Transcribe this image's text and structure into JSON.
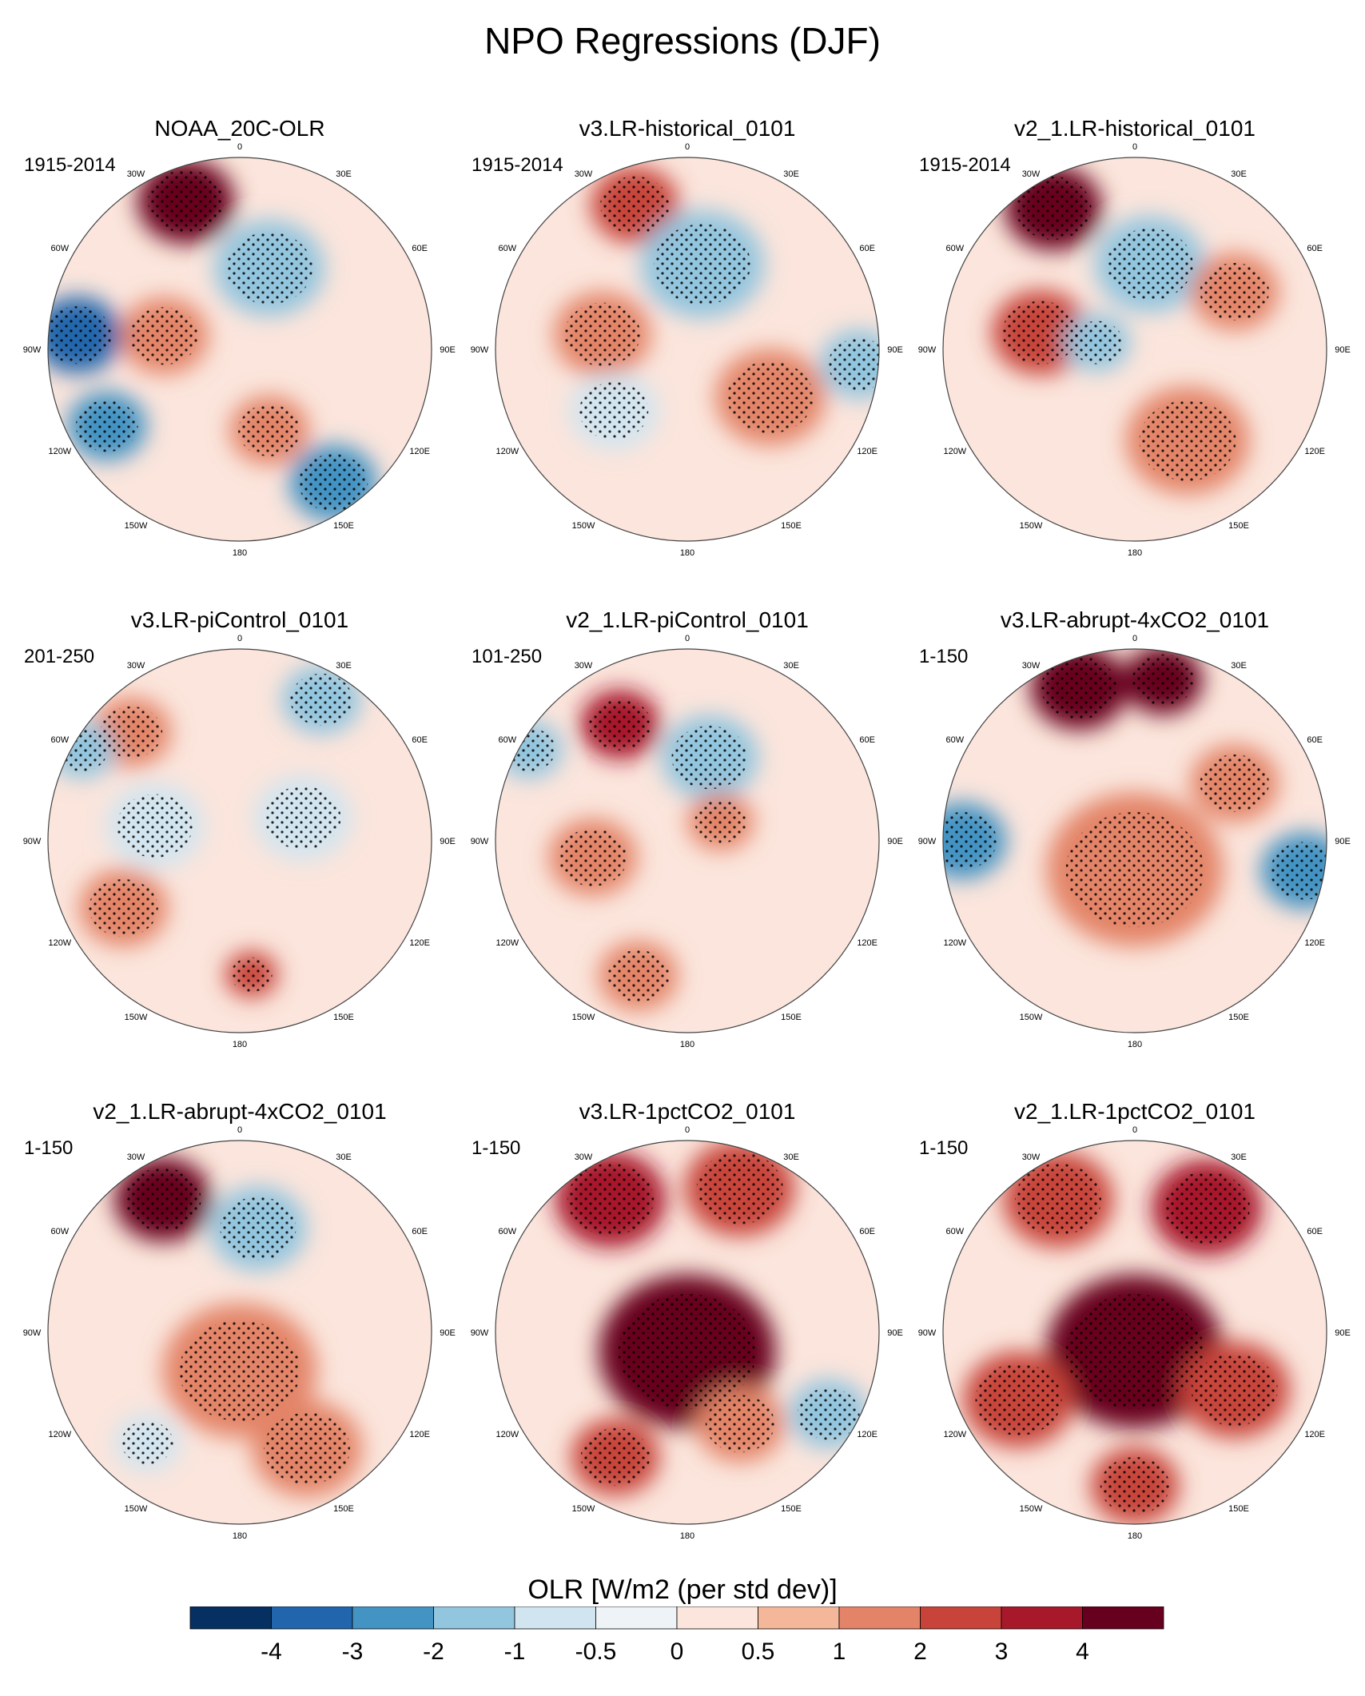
{
  "title": "NPO Regressions (DJF)",
  "chart_data": {
    "type": "heatmap",
    "projection": "north-polar-stereographic",
    "variable": "OLR",
    "longitude_labels": [
      "180",
      "150E",
      "120E",
      "90E",
      "60E",
      "30E",
      "0",
      "30W",
      "60W",
      "90W",
      "120W",
      "150W"
    ],
    "panels": [
      {
        "name": "NOAA_20C-OLR",
        "period": "1915-2014",
        "anomalies": [
          {
            "lon": -160,
            "colat": 0.82,
            "value": 4,
            "r": 0.22
          },
          {
            "lon": -95,
            "colat": 0.85,
            "value": -4,
            "r": 0.2
          },
          {
            "lon": -60,
            "colat": 0.8,
            "value": -3,
            "r": 0.18
          },
          {
            "lon": 160,
            "colat": 0.45,
            "value": -2,
            "r": 0.25
          },
          {
            "lon": -100,
            "colat": 0.4,
            "value": 1.5,
            "r": 0.2
          },
          {
            "lon": 35,
            "colat": 0.85,
            "value": -3,
            "r": 0.2
          },
          {
            "lon": 20,
            "colat": 0.45,
            "value": 1.5,
            "r": 0.18
          }
        ]
      },
      {
        "name": "v3.LR-historical_0101",
        "period": "1915-2014",
        "anomalies": [
          {
            "lon": -160,
            "colat": 0.8,
            "value": 2,
            "r": 0.2
          },
          {
            "lon": 170,
            "colat": 0.45,
            "value": -1.5,
            "r": 0.28
          },
          {
            "lon": -100,
            "colat": 0.45,
            "value": 1.5,
            "r": 0.22
          },
          {
            "lon": 60,
            "colat": 0.5,
            "value": 1,
            "r": 0.25
          },
          {
            "lon": 85,
            "colat": 0.9,
            "value": -2,
            "r": 0.18
          },
          {
            "lon": -50,
            "colat": 0.5,
            "value": -1,
            "r": 0.2
          }
        ]
      },
      {
        "name": "v2_1.LR-historical_0101",
        "period": "1915-2014",
        "anomalies": [
          {
            "lon": -150,
            "colat": 0.85,
            "value": 4,
            "r": 0.22
          },
          {
            "lon": 170,
            "colat": 0.45,
            "value": -1.5,
            "r": 0.25
          },
          {
            "lon": -100,
            "colat": 0.5,
            "value": 2,
            "r": 0.22
          },
          {
            "lon": 30,
            "colat": 0.55,
            "value": 1.5,
            "r": 0.28
          },
          {
            "lon": -100,
            "colat": 0.2,
            "value": -1.5,
            "r": 0.15
          },
          {
            "lon": 120,
            "colat": 0.6,
            "value": 1,
            "r": 0.2
          }
        ]
      },
      {
        "name": "v3.LR-piControl_0101",
        "period": "201-250",
        "anomalies": [
          {
            "lon": -135,
            "colat": 0.8,
            "value": 1.5,
            "r": 0.18
          },
          {
            "lon": -120,
            "colat": 0.95,
            "value": -2,
            "r": 0.15
          },
          {
            "lon": 150,
            "colat": 0.85,
            "value": -1.5,
            "r": 0.18
          },
          {
            "lon": -100,
            "colat": 0.45,
            "value": -1,
            "r": 0.22
          },
          {
            "lon": 110,
            "colat": 0.35,
            "value": -1,
            "r": 0.22
          },
          {
            "lon": -60,
            "colat": 0.7,
            "value": 1,
            "r": 0.2
          },
          {
            "lon": 5,
            "colat": 0.7,
            "value": 2,
            "r": 0.12
          }
        ]
      },
      {
        "name": "v2_1.LR-piControl_0101",
        "period": "101-250",
        "anomalies": [
          {
            "lon": -150,
            "colat": 0.7,
            "value": 3,
            "r": 0.18
          },
          {
            "lon": 165,
            "colat": 0.45,
            "value": -1.5,
            "r": 0.22
          },
          {
            "lon": -120,
            "colat": 0.95,
            "value": -2,
            "r": 0.15
          },
          {
            "lon": -80,
            "colat": 0.5,
            "value": 1,
            "r": 0.2
          },
          {
            "lon": -20,
            "colat": 0.75,
            "value": 1.5,
            "r": 0.18
          },
          {
            "lon": 120,
            "colat": 0.2,
            "value": 1,
            "r": 0.15
          }
        ]
      },
      {
        "name": "v3.LR-abrupt-4xCO2_0101",
        "period": "1-150",
        "anomalies": [
          {
            "lon": -160,
            "colat": 0.85,
            "value": 4,
            "r": 0.22
          },
          {
            "lon": 170,
            "colat": 0.85,
            "value": 4,
            "r": 0.18
          },
          {
            "lon": -90,
            "colat": 0.9,
            "value": -3,
            "r": 0.2
          },
          {
            "lon": 80,
            "colat": 0.9,
            "value": -3,
            "r": 0.2
          },
          {
            "lon": 0,
            "colat": 0.15,
            "value": 1.5,
            "r": 0.4
          },
          {
            "lon": 120,
            "colat": 0.6,
            "value": 1,
            "r": 0.2
          }
        ]
      },
      {
        "name": "v2_1.LR-abrupt-4xCO2_0101",
        "period": "1-150",
        "anomalies": [
          {
            "lon": -150,
            "colat": 0.8,
            "value": 4,
            "r": 0.22
          },
          {
            "lon": 170,
            "colat": 0.55,
            "value": -1.5,
            "r": 0.22
          },
          {
            "lon": 0,
            "colat": 0.2,
            "value": 1.5,
            "r": 0.35
          },
          {
            "lon": 30,
            "colat": 0.7,
            "value": 1.5,
            "r": 0.25
          },
          {
            "lon": -40,
            "colat": 0.75,
            "value": -1,
            "r": 0.15
          }
        ]
      },
      {
        "name": "v3.LR-1pctCO2_0101",
        "period": "1-150",
        "anomalies": [
          {
            "lon": 0,
            "colat": 0.1,
            "value": 4,
            "r": 0.4
          },
          {
            "lon": -150,
            "colat": 0.8,
            "value": 3,
            "r": 0.25
          },
          {
            "lon": 160,
            "colat": 0.8,
            "value": 2,
            "r": 0.25
          },
          {
            "lon": 60,
            "colat": 0.85,
            "value": -2,
            "r": 0.18
          },
          {
            "lon": -30,
            "colat": 0.75,
            "value": 2,
            "r": 0.2
          },
          {
            "lon": 30,
            "colat": 0.55,
            "value": 1.5,
            "r": 0.2
          }
        ]
      },
      {
        "name": "v2_1.LR-1pctCO2_0101",
        "period": "1-150",
        "anomalies": [
          {
            "lon": 0,
            "colat": 0.1,
            "value": 4,
            "r": 0.4
          },
          {
            "lon": 150,
            "colat": 0.75,
            "value": 3,
            "r": 0.25
          },
          {
            "lon": -150,
            "colat": 0.8,
            "value": 2,
            "r": 0.25
          },
          {
            "lon": 60,
            "colat": 0.6,
            "value": 2,
            "r": 0.25
          },
          {
            "lon": -60,
            "colat": 0.7,
            "value": 2,
            "r": 0.25
          },
          {
            "lon": 0,
            "colat": 0.8,
            "value": 2,
            "r": 0.2
          }
        ]
      }
    ],
    "colorbar": {
      "title": "OLR [W/m2 (per std dev)]",
      "levels": [
        "-4",
        "-3",
        "-2",
        "-1",
        "-0.5",
        "0",
        "0.5",
        "1",
        "2",
        "3",
        "4"
      ],
      "colors": [
        "#053061",
        "#2166ac",
        "#4393c3",
        "#92c5de",
        "#d1e5f0",
        "#eef3f7",
        "#fbe5dc",
        "#f4b799",
        "#e38468",
        "#c8443a",
        "#a7192a",
        "#67001f"
      ],
      "background": "#fbe5dc"
    }
  }
}
